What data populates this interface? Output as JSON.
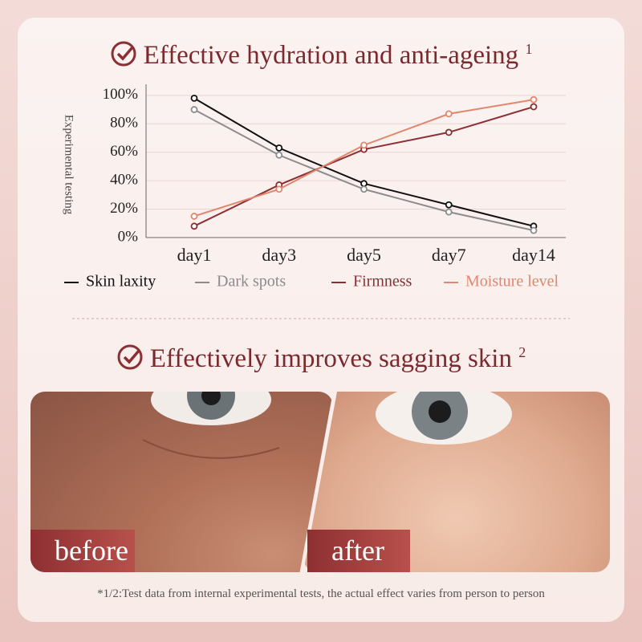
{
  "header": {
    "title": "Effective hydration and anti-ageing",
    "note": "1"
  },
  "chart_data": {
    "type": "line",
    "ylabel": "Experimental testing",
    "categories": [
      "day1",
      "day3",
      "day5",
      "day7",
      "day14"
    ],
    "series": [
      {
        "name": "Skin laxity",
        "color": "#111111",
        "values": [
          98,
          63,
          38,
          23,
          8
        ]
      },
      {
        "name": "Dark spots",
        "color": "#8c8c8c",
        "values": [
          90,
          58,
          34,
          18,
          5
        ]
      },
      {
        "name": "Firmness",
        "color": "#8b2f35",
        "values": [
          8,
          37,
          62,
          74,
          92
        ]
      },
      {
        "name": "Moisture level",
        "color": "#e0876e",
        "values": [
          15,
          34,
          65,
          87,
          97
        ]
      }
    ],
    "ylim": [
      0,
      105
    ],
    "yticks": [
      {
        "value": 0,
        "label": "0%"
      },
      {
        "value": 20,
        "label": "20%"
      },
      {
        "value": 40,
        "label": "40%"
      },
      {
        "value": 60,
        "label": "60%"
      },
      {
        "value": 80,
        "label": "80%"
      },
      {
        "value": 100,
        "label": "100%"
      }
    ],
    "grid": true
  },
  "section": {
    "title": "Effectively improves sagging skin",
    "note": "2",
    "before": "before",
    "after": "after"
  },
  "footnote": "*1/2:Test data from internal experimental tests, the actual effect varies from person to person"
}
